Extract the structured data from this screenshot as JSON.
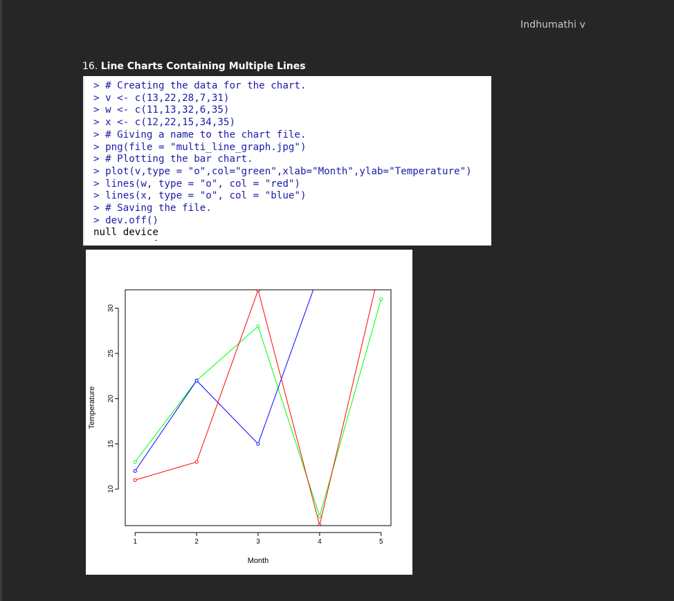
{
  "header": {
    "author": "Indhumathi v"
  },
  "section": {
    "number": "16.",
    "title": "Line Charts Containing Multiple Lines"
  },
  "code": {
    "lines": [
      "> # Creating the data for the chart.",
      "> v <- c(13,22,28,7,31)",
      "> w <- c(11,13,32,6,35)",
      "> x <- c(12,22,15,34,35)",
      "> # Giving a name to the chart file.",
      "> png(file = \"multi_line_graph.jpg\")",
      "> # Plotting the bar chart.",
      "> plot(v,type = \"o\",col=\"green\",xlab=\"Month\",ylab=\"Temperature\")",
      "> lines(w, type = \"o\", col = \"red\")",
      "> lines(x, type = \"o\", col = \"blue\")",
      "> # Saving the file.",
      "> dev.off()"
    ],
    "output": "null device"
  },
  "chart_data": {
    "type": "line",
    "x": [
      1,
      2,
      3,
      4,
      5
    ],
    "series": [
      {
        "name": "v",
        "color": "#00ff00",
        "values": [
          13,
          22,
          28,
          7,
          31
        ]
      },
      {
        "name": "w",
        "color": "#ff0000",
        "values": [
          11,
          13,
          32,
          6,
          35
        ]
      },
      {
        "name": "x",
        "color": "#0000ff",
        "values": [
          12,
          22,
          15,
          34,
          35
        ]
      }
    ],
    "xlabel": "Month",
    "ylabel": "Temperature",
    "xlim": [
      0.84,
      5.16
    ],
    "ylim": [
      5.96,
      32.04
    ],
    "xticks": [
      1,
      2,
      3,
      4,
      5
    ],
    "yticks": [
      10,
      15,
      20,
      25,
      30
    ],
    "grid": false,
    "markers": "open-circle"
  }
}
